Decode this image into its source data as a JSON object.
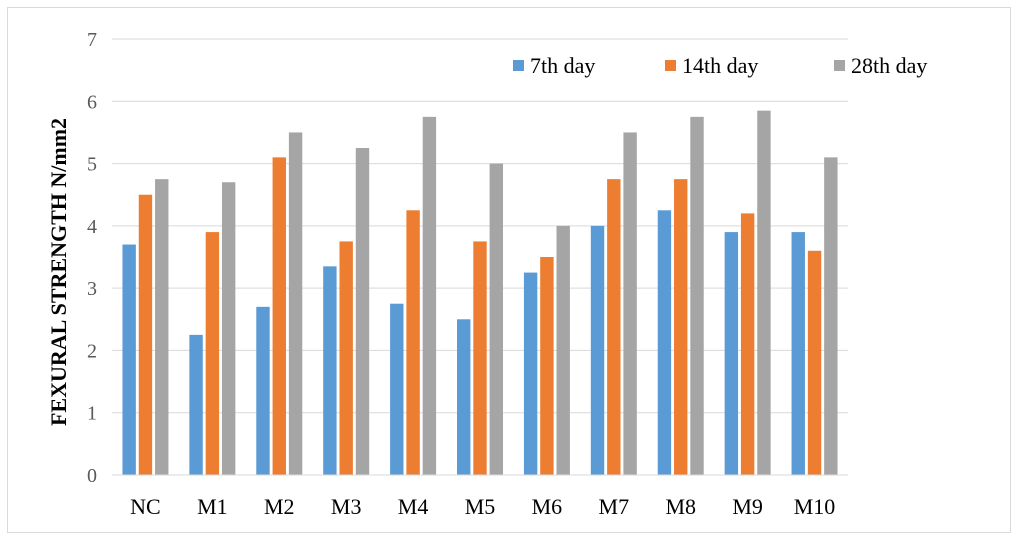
{
  "chart_data": {
    "type": "bar",
    "title": "",
    "xlabel": "",
    "ylabel": "FEXURAL STRENGTH N/mm2",
    "ylim": [
      0,
      7
    ],
    "yticks": [
      0,
      1,
      2,
      3,
      4,
      5,
      6,
      7
    ],
    "grid": true,
    "legend_position": "top-right",
    "categories": [
      "NC",
      "M1",
      "M2",
      "M3",
      "M4",
      "M5",
      "M6",
      "M7",
      "M8",
      "M9",
      "M10"
    ],
    "series": [
      {
        "name": "7th day",
        "color": "#5b9bd5",
        "values": [
          3.7,
          2.25,
          2.7,
          3.35,
          2.75,
          2.5,
          3.25,
          4.0,
          4.25,
          3.9,
          3.9
        ]
      },
      {
        "name": "14th day",
        "color": "#ed7d31",
        "values": [
          4.5,
          3.9,
          5.1,
          3.75,
          4.25,
          3.75,
          3.5,
          4.75,
          4.75,
          4.2,
          3.6
        ]
      },
      {
        "name": "28th day",
        "color": "#a5a5a5",
        "values": [
          4.75,
          4.7,
          5.5,
          5.25,
          5.75,
          5.0,
          4.0,
          5.5,
          5.75,
          5.85,
          5.1
        ]
      }
    ]
  }
}
